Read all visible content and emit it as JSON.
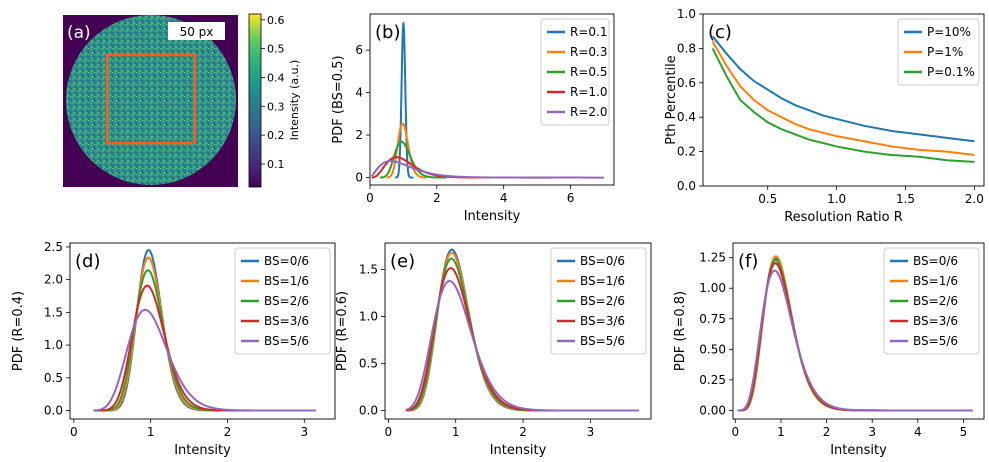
{
  "colors": {
    "c0": "#1f77b4",
    "c1": "#ff7f0e",
    "c2": "#2ca02c",
    "c3": "#d62728",
    "c4": "#9467bd",
    "roi": "#ff5a1f",
    "disk": "#2d8f8c",
    "background_img": "#440154"
  },
  "chart_data": [
    {
      "id": "a",
      "type": "heatmap",
      "panel_label": "(a)",
      "scalebar_label": "50 px",
      "colorbar": {
        "label": "Intensity (a.u.)",
        "ticks": [
          0.1,
          0.2,
          0.3,
          0.4,
          0.5,
          0.6
        ],
        "tick_labels": [
          "0.1",
          "0.2",
          "0.3",
          "0.4",
          "0.5",
          "0.6"
        ],
        "range": [
          0.02,
          0.62
        ],
        "colormap": "viridis"
      }
    },
    {
      "id": "b",
      "type": "line",
      "panel_label": "(b)",
      "xlabel": "Intensity",
      "ylabel": "PDF (BS=0.5)",
      "xlim": [
        0,
        7.3
      ],
      "ylim": [
        -0.35,
        7.7
      ],
      "xticks": [
        0,
        2,
        4,
        6
      ],
      "yticks": [
        0,
        2,
        4,
        6
      ],
      "legend_position": "upper right",
      "series": [
        {
          "name": "R=0.1",
          "dist": "gauss",
          "mu": 1.0,
          "sigma": 0.055,
          "xmin": 0.75,
          "xmax": 1.3
        },
        {
          "name": "R=0.3",
          "dist": "gamma",
          "k": 40,
          "xmin": 0.5,
          "xmax": 1.7
        },
        {
          "name": "R=0.5",
          "dist": "gamma",
          "k": 17,
          "xmin": 0.3,
          "xmax": 2.3
        },
        {
          "name": "R=1.0",
          "dist": "gamma",
          "k": 4.8,
          "xmin": 0.05,
          "xmax": 5.5
        },
        {
          "name": "R=2.0",
          "dist": "gamma",
          "k": 2.6,
          "xmin": 0.05,
          "xmax": 7.0
        }
      ]
    },
    {
      "id": "c",
      "type": "line",
      "panel_label": "(c)",
      "xlabel": "Resolution Ratio R",
      "ylabel": "Pth Percentile",
      "xlim": [
        0.03,
        2.07
      ],
      "ylim": [
        0.0,
        1.0
      ],
      "xticks": [
        0.5,
        1.0,
        1.5,
        2.0
      ],
      "yticks": [
        0.0,
        0.2,
        0.4,
        0.6,
        0.8,
        1.0
      ],
      "xtick_labels": [
        "0.5",
        "1.0",
        "1.5",
        "2.0"
      ],
      "ytick_labels": [
        "0.0",
        "0.2",
        "0.4",
        "0.6",
        "0.8",
        "1.0"
      ],
      "legend_position": "upper right",
      "series": [
        {
          "name": "P=10%",
          "x": [
            0.1,
            0.2,
            0.3,
            0.4,
            0.5,
            0.6,
            0.7,
            0.8,
            0.9,
            1.0,
            1.2,
            1.4,
            1.6,
            1.8,
            2.0
          ],
          "y": [
            0.87,
            0.77,
            0.68,
            0.61,
            0.56,
            0.51,
            0.47,
            0.44,
            0.41,
            0.39,
            0.35,
            0.32,
            0.3,
            0.28,
            0.26
          ]
        },
        {
          "name": "P=1%",
          "x": [
            0.1,
            0.2,
            0.3,
            0.4,
            0.5,
            0.6,
            0.7,
            0.8,
            0.9,
            1.0,
            1.2,
            1.4,
            1.6,
            1.8,
            2.0
          ],
          "y": [
            0.84,
            0.7,
            0.58,
            0.5,
            0.44,
            0.4,
            0.36,
            0.33,
            0.31,
            0.29,
            0.26,
            0.23,
            0.21,
            0.2,
            0.18
          ]
        },
        {
          "name": "P=0.1%",
          "x": [
            0.1,
            0.2,
            0.3,
            0.4,
            0.5,
            0.6,
            0.7,
            0.8,
            0.9,
            1.0,
            1.2,
            1.4,
            1.6,
            1.8,
            2.0
          ],
          "y": [
            0.8,
            0.64,
            0.5,
            0.43,
            0.37,
            0.33,
            0.3,
            0.27,
            0.25,
            0.23,
            0.2,
            0.18,
            0.17,
            0.15,
            0.14
          ]
        }
      ]
    },
    {
      "id": "d",
      "type": "line",
      "panel_label": "(d)",
      "xlabel": "Intensity",
      "ylabel": "PDF (R=0.4)",
      "xlim": [
        -0.05,
        3.4
      ],
      "ylim": [
        -0.13,
        2.56
      ],
      "xticks": [
        0,
        1,
        2,
        3
      ],
      "yticks": [
        0.0,
        0.5,
        1.0,
        1.5,
        2.0,
        2.5
      ],
      "ytick_labels": [
        "0.0",
        "0.5",
        "1.0",
        "1.5",
        "2.0",
        "2.5"
      ],
      "legend_position": "upper right",
      "series": [
        {
          "name": "BS=0/6",
          "dist": "gamma",
          "k": 37,
          "xmin": 0.26,
          "xmax": 3.15
        },
        {
          "name": "BS=1/6",
          "dist": "gamma",
          "k": 33.5,
          "xmin": 0.26,
          "xmax": 3.15
        },
        {
          "name": "BS=2/6",
          "dist": "gamma",
          "k": 28,
          "xmin": 0.26,
          "xmax": 3.15
        },
        {
          "name": "BS=3/6",
          "dist": "gamma",
          "k": 22,
          "xmin": 0.26,
          "xmax": 3.15
        },
        {
          "name": "BS=5/6",
          "dist": "gamma",
          "k": 14,
          "xmin": 0.26,
          "xmax": 3.15
        }
      ]
    },
    {
      "id": "e",
      "type": "line",
      "panel_label": "(e)",
      "xlabel": "Intensity",
      "ylabel": "PDF (R=0.6)",
      "xlim": [
        -0.05,
        3.9
      ],
      "ylim": [
        -0.09,
        1.78
      ],
      "xticks": [
        0,
        1,
        2,
        3
      ],
      "yticks": [
        0.0,
        0.5,
        1.0,
        1.5
      ],
      "ytick_labels": [
        "0.0",
        "0.5",
        "1.0",
        "1.5"
      ],
      "legend_position": "upper right",
      "series": [
        {
          "name": "BS=0/6",
          "dist": "gamma",
          "k": 17.5,
          "xmin": 0.26,
          "xmax": 3.72
        },
        {
          "name": "BS=1/6",
          "dist": "gamma",
          "k": 16.8,
          "xmin": 0.26,
          "xmax": 3.72
        },
        {
          "name": "BS=2/6",
          "dist": "gamma",
          "k": 15.5,
          "xmin": 0.26,
          "xmax": 3.72
        },
        {
          "name": "BS=3/6",
          "dist": "gamma",
          "k": 13.5,
          "xmin": 0.26,
          "xmax": 3.72
        },
        {
          "name": "BS=5/6",
          "dist": "gamma",
          "k": 11.0,
          "xmin": 0.26,
          "xmax": 3.72
        }
      ]
    },
    {
      "id": "f",
      "type": "line",
      "panel_label": "(f)",
      "xlabel": "Intensity",
      "ylabel": "PDF (R=0.8)",
      "xlim": [
        -0.05,
        5.45
      ],
      "ylim": [
        -0.07,
        1.37
      ],
      "xticks": [
        0,
        1,
        2,
        3,
        4,
        5
      ],
      "yticks": [
        0.0,
        0.25,
        0.5,
        0.75,
        1.0,
        1.25
      ],
      "ytick_labels": [
        "0.00",
        "0.25",
        "0.50",
        "0.75",
        "1.00",
        "1.25"
      ],
      "legend_position": "upper right",
      "series": [
        {
          "name": "BS=0/6",
          "dist": "gamma",
          "k": 8.8,
          "xmin": 0.05,
          "xmax": 5.2
        },
        {
          "name": "BS=1/6",
          "dist": "gamma",
          "k": 9.1,
          "xmin": 0.05,
          "xmax": 5.2
        },
        {
          "name": "BS=2/6",
          "dist": "gamma",
          "k": 8.6,
          "xmin": 0.05,
          "xmax": 5.2
        },
        {
          "name": "BS=3/6",
          "dist": "gamma",
          "k": 8.2,
          "xmin": 0.05,
          "xmax": 5.2
        },
        {
          "name": "BS=5/6",
          "dist": "gamma",
          "k": 7.3,
          "xmin": 0.05,
          "xmax": 5.2
        }
      ]
    }
  ]
}
